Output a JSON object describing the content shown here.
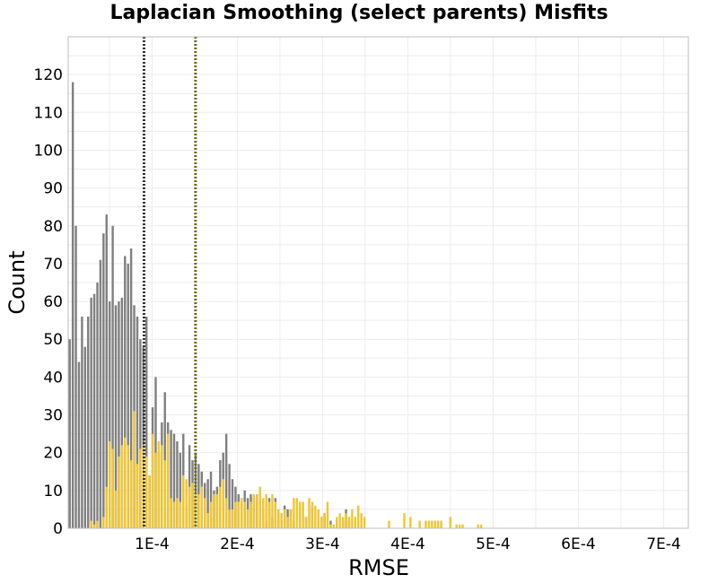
{
  "chart_data": {
    "type": "bar",
    "title": "Laplacian Smoothing (select parents) Misfits",
    "xlabel": "RMSE",
    "ylabel": "Count",
    "xlim": [
      1.7e-06,
      0.000729
    ],
    "ylim": [
      0,
      130
    ],
    "bin_start": 1.7e-06,
    "bin_width": 3.6e-06,
    "yticks": [
      0,
      10,
      20,
      30,
      40,
      50,
      60,
      70,
      80,
      90,
      100,
      110,
      120
    ],
    "xticks": [
      0.0001,
      0.0002,
      0.0003,
      0.0004,
      0.0005,
      0.0006,
      0.0007
    ],
    "xtick_labels": [
      "1E-4",
      "2E-4",
      "3E-4",
      "4E-4",
      "5E-4",
      "6E-4",
      "7E-4"
    ],
    "grid": true,
    "legend": "none",
    "series": [
      {
        "color": "#808080",
        "values": [
          50,
          118,
          80,
          44,
          56,
          48,
          56,
          61,
          62,
          65,
          71,
          78,
          83,
          60,
          80,
          59,
          60,
          61,
          72,
          70,
          74,
          59,
          56,
          50,
          48,
          56,
          14,
          32,
          40,
          20,
          28,
          36,
          28,
          26,
          25,
          23,
          20,
          25,
          6,
          22,
          18,
          20,
          17,
          15,
          12,
          13,
          15,
          10,
          11,
          18,
          20,
          25,
          17,
          13,
          11,
          9,
          8,
          10,
          8,
          9,
          8,
          9,
          8,
          5,
          2,
          8,
          3,
          8,
          5,
          2,
          6,
          5,
          5,
          2,
          0,
          4,
          0,
          3,
          0,
          6,
          0,
          4,
          3,
          4,
          0,
          2,
          0,
          2,
          0,
          2,
          5,
          2,
          0,
          0,
          0,
          0,
          0,
          0,
          0,
          0,
          0,
          0,
          0,
          0,
          0,
          0,
          0,
          0,
          0,
          0,
          0,
          0,
          0,
          0,
          0,
          0,
          0,
          0,
          0,
          0,
          0,
          0,
          0,
          0,
          0,
          0,
          0,
          0,
          0,
          0,
          0,
          0,
          0,
          0,
          0,
          0,
          0,
          0,
          0,
          0,
          0,
          0,
          0,
          0,
          0,
          0,
          0,
          0,
          0,
          0,
          0,
          0,
          0,
          0,
          0,
          0,
          0,
          0,
          0,
          0,
          0,
          0,
          0,
          0,
          0,
          0,
          0,
          0,
          0,
          0,
          0,
          0,
          0,
          0,
          0,
          0,
          0,
          0,
          0,
          0,
          0,
          0,
          0,
          0,
          0,
          0,
          0,
          0,
          0,
          0,
          0,
          0,
          0,
          0,
          0,
          0,
          0,
          0,
          0,
          0,
          0,
          0
        ]
      },
      {
        "color": "#f0c630",
        "values": [
          0,
          0,
          0,
          0,
          0,
          0,
          0,
          2,
          1,
          2,
          0,
          3,
          11,
          23,
          21,
          10,
          19,
          22,
          24,
          22,
          18,
          31,
          17,
          21,
          22,
          19,
          14,
          25,
          20,
          23,
          22,
          18,
          25,
          8,
          7,
          8,
          7,
          14,
          13,
          11,
          12,
          9,
          9,
          11,
          8,
          4,
          7,
          9,
          9,
          11,
          13,
          8,
          5,
          5,
          7,
          7,
          8,
          7,
          5,
          7,
          9,
          9,
          11,
          8,
          9,
          7,
          9,
          7,
          5,
          4,
          5,
          3,
          5,
          8,
          8,
          7,
          7,
          3,
          8,
          7,
          6,
          5,
          3,
          4,
          7,
          1,
          1,
          3,
          4,
          3,
          4,
          3,
          5,
          3,
          6,
          4,
          3,
          0,
          0,
          0,
          0,
          0,
          0,
          0,
          2,
          0,
          0,
          0,
          0,
          4,
          0,
          3,
          0,
          0,
          2,
          0,
          2,
          2,
          2,
          2,
          2,
          2,
          0,
          0,
          3,
          0,
          1,
          1,
          1,
          0,
          0,
          0,
          0,
          1,
          1,
          0,
          0,
          0,
          0,
          0,
          0,
          0,
          0,
          0,
          0,
          0,
          0,
          0,
          0,
          0,
          0,
          0,
          0,
          0,
          0,
          0,
          0,
          0,
          0,
          0,
          0,
          0,
          0,
          0,
          0,
          0,
          0,
          0,
          0,
          0,
          0,
          0,
          0,
          0,
          0,
          0,
          0,
          0,
          0,
          0,
          0,
          0,
          0,
          0,
          0,
          0,
          0,
          0,
          0,
          0,
          0,
          0,
          0,
          0,
          0,
          0,
          0,
          0,
          0,
          0,
          0,
          0,
          0
        ]
      }
    ],
    "vlines": [
      {
        "x": 9.06e-05,
        "color": "#333333"
      },
      {
        "x": 0.000151,
        "color": "#6b6b10"
      }
    ]
  }
}
